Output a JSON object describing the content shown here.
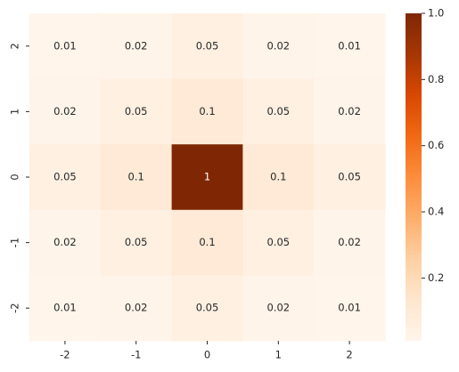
{
  "chart_data": {
    "type": "heatmap",
    "x_categories": [
      "-2",
      "-1",
      "0",
      "1",
      "2"
    ],
    "y_categories": [
      "2",
      "1",
      "0",
      "-1",
      "-2"
    ],
    "values": [
      [
        0.01,
        0.02,
        0.05,
        0.02,
        0.01
      ],
      [
        0.02,
        0.05,
        0.1,
        0.05,
        0.02
      ],
      [
        0.05,
        0.1,
        1,
        0.1,
        0.05
      ],
      [
        0.02,
        0.05,
        0.1,
        0.05,
        0.02
      ],
      [
        0.01,
        0.02,
        0.05,
        0.02,
        0.01
      ]
    ],
    "colormap": [
      "#fff5eb",
      "#fee6ce",
      "#fdd0a2",
      "#fdae6b",
      "#fd8d3c",
      "#f16913",
      "#d94801",
      "#a63603",
      "#7f2704"
    ],
    "clim": [
      0.01,
      1
    ],
    "cticks": [
      0.2,
      0.4,
      0.6,
      0.8,
      {
        "value": 1,
        "label": "1.0"
      }
    ]
  }
}
